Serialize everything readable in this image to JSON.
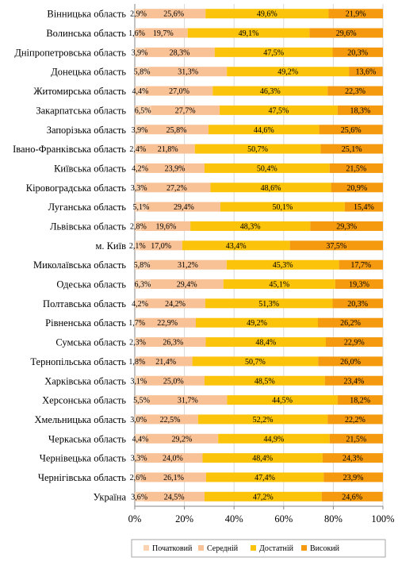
{
  "chart_data": {
    "type": "bar",
    "orientation": "horizontal",
    "stacked": "percent",
    "categories": [
      "Вінницька область",
      "Волинська область",
      "Дніпропетровська область",
      "Донецька область",
      "Житомирська область",
      "Закарпатська область",
      "Запорізька область",
      "Івано-Франківська область",
      "Київська область",
      "Кіровоградська область",
      "Луганська область",
      "Львівська область",
      "м. Київ",
      "Миколаївська область",
      "Одеська область",
      "Полтавська область",
      "Рівненська область",
      "Сумська область",
      "Тернопільська область",
      "Харківська область",
      "Херсонська область",
      "Хмельницька область",
      "Черкаська область",
      "Чернівецька область",
      "Чернігівська область",
      "Україна"
    ],
    "series": [
      {
        "name": "Початковий",
        "color": "#fbd3b1",
        "values": [
          2.9,
          1.6,
          3.9,
          5.8,
          4.4,
          6.5,
          3.9,
          2.4,
          4.2,
          3.3,
          5.1,
          2.8,
          2.1,
          5.8,
          6.3,
          4.2,
          1.7,
          2.3,
          1.8,
          3.1,
          5.5,
          3.0,
          4.4,
          3.3,
          2.6,
          3.6
        ],
        "labels": [
          "2,9%",
          "1,6%",
          "3,9%",
          "5,8%",
          "4,4%",
          "6,5%",
          "3,9%",
          "2,4%",
          "4,2%",
          "3,3%",
          "5,1%",
          "2,8%",
          "2,1%",
          "5,8%",
          "6,3%",
          "4,2%",
          "1,7%",
          "2,3%",
          "1,8%",
          "3,1%",
          "5,5%",
          "3,0%",
          "4,4%",
          "3,3%",
          "2,6%",
          "3,6%"
        ]
      },
      {
        "name": "Середній",
        "color": "#f8c296",
        "values": [
          25.6,
          19.7,
          28.3,
          31.3,
          27.0,
          27.7,
          25.8,
          21.8,
          23.9,
          27.2,
          29.4,
          19.6,
          17.0,
          31.2,
          29.4,
          24.2,
          22.9,
          26.3,
          21.4,
          25.0,
          31.7,
          22.5,
          29.2,
          24.0,
          26.1,
          24.5
        ],
        "labels": [
          "25,6%",
          "19,7%",
          "28,3%",
          "31,3%",
          "27,0%",
          "27,7%",
          "25,8%",
          "21,8%",
          "23,9%",
          "27,2%",
          "29,4%",
          "19,6%",
          "17,0%",
          "31,2%",
          "29,4%",
          "24,2%",
          "22,9%",
          "26,3%",
          "21,4%",
          "25,0%",
          "31,7%",
          "22,5%",
          "29,2%",
          "24,0%",
          "26,1%",
          "24,5%"
        ]
      },
      {
        "name": "Достатній",
        "color": "#fbc40b",
        "values": [
          49.6,
          49.1,
          47.5,
          49.2,
          46.3,
          47.5,
          44.6,
          50.7,
          50.4,
          48.6,
          50.1,
          48.3,
          43.4,
          45.3,
          45.1,
          51.3,
          49.2,
          48.4,
          50.7,
          48.5,
          44.5,
          52.2,
          44.9,
          48.4,
          47.4,
          47.2
        ],
        "labels": [
          "49,6%",
          "49,1%",
          "47,5%",
          "49,2%",
          "46,3%",
          "47,5%",
          "44,6%",
          "50,7%",
          "50,4%",
          "48,6%",
          "50,1%",
          "48,3%",
          "43,4%",
          "45,3%",
          "45,1%",
          "51,3%",
          "49,2%",
          "48,4%",
          "50,7%",
          "48,5%",
          "44,5%",
          "52,2%",
          "44,9%",
          "48,4%",
          "47,4%",
          "47,2%"
        ]
      },
      {
        "name": "Високий",
        "color": "#f59a0e",
        "values": [
          21.9,
          29.6,
          20.3,
          13.6,
          22.3,
          18.3,
          25.6,
          25.1,
          21.5,
          20.9,
          15.4,
          29.3,
          37.5,
          17.7,
          19.3,
          20.3,
          26.2,
          22.9,
          26.0,
          23.4,
          18.2,
          22.2,
          21.5,
          24.3,
          23.9,
          24.6
        ],
        "labels": [
          "21,9%",
          "29,6%",
          "20,3%",
          "13,6%",
          "22,3%",
          "18,3%",
          "25,6%",
          "25,1%",
          "21,5%",
          "20,9%",
          "15,4%",
          "29,3%",
          "37,5%",
          "17,7%",
          "19,3%",
          "20,3%",
          "26,2%",
          "22,9%",
          "26,0%",
          "23,4%",
          "18,2%",
          "22,2%",
          "21,5%",
          "24,3%",
          "23,9%",
          "24,6%"
        ]
      }
    ],
    "x_ticks": [
      "0%",
      "20%",
      "40%",
      "60%",
      "80%",
      "100%"
    ],
    "xlim": [
      0,
      100
    ],
    "grid": true,
    "legend_position": "bottom",
    "title": "",
    "xlabel": "",
    "ylabel": ""
  }
}
